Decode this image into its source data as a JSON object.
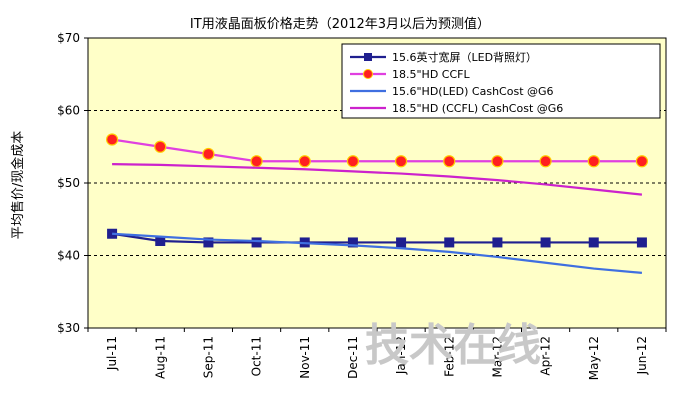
{
  "chart_data": {
    "type": "line",
    "title": "IT用液晶面板价格走势（2012年3月以后为预测值）",
    "ylabel": "平均售价/现金成本",
    "xlabel": "",
    "categories": [
      "Jul-11",
      "Aug-11",
      "Sep-11",
      "Oct-11",
      "Nov-11",
      "Dec-11",
      "Jan-12",
      "Feb-12",
      "Mar-12",
      "Apr-12",
      "May-12",
      "Jun-12"
    ],
    "ylim": [
      30,
      70
    ],
    "yticks": [
      30,
      40,
      50,
      60,
      70
    ],
    "ytick_labels": [
      "$30",
      "$40",
      "$50",
      "$60",
      "$70"
    ],
    "grid": "horizontal dashed",
    "legend_position": "top-right",
    "background": "#ffffc8",
    "series": [
      {
        "name": "15.6英寸宽屏（LED背照灯）",
        "color": "#1f1f8f",
        "marker": "square",
        "values": [
          43,
          42,
          41.8,
          41.8,
          41.8,
          41.8,
          41.8,
          41.8,
          41.8,
          41.8,
          41.8,
          41.8
        ]
      },
      {
        "name": "18.5\"HD CCFL",
        "color": "#e040e0",
        "marker": "circle",
        "values": [
          56,
          55,
          54,
          53,
          53,
          53,
          53,
          53,
          53,
          53,
          53,
          53
        ]
      },
      {
        "name": "15.6\"HD(LED) CashCost @G6",
        "color": "#3f6fe0",
        "marker": "none",
        "values": [
          43,
          42.6,
          42.2,
          42,
          41.7,
          41.4,
          41,
          40.5,
          39.8,
          39,
          38.2,
          37.6
        ]
      },
      {
        "name": "18.5\"HD (CCFL) CashCost @G6",
        "color": "#cc22cc",
        "marker": "none",
        "values": [
          52.6,
          52.5,
          52.3,
          52.1,
          51.9,
          51.6,
          51.3,
          50.9,
          50.4,
          49.8,
          49.1,
          48.4
        ]
      }
    ],
    "watermark": "技术在线"
  }
}
